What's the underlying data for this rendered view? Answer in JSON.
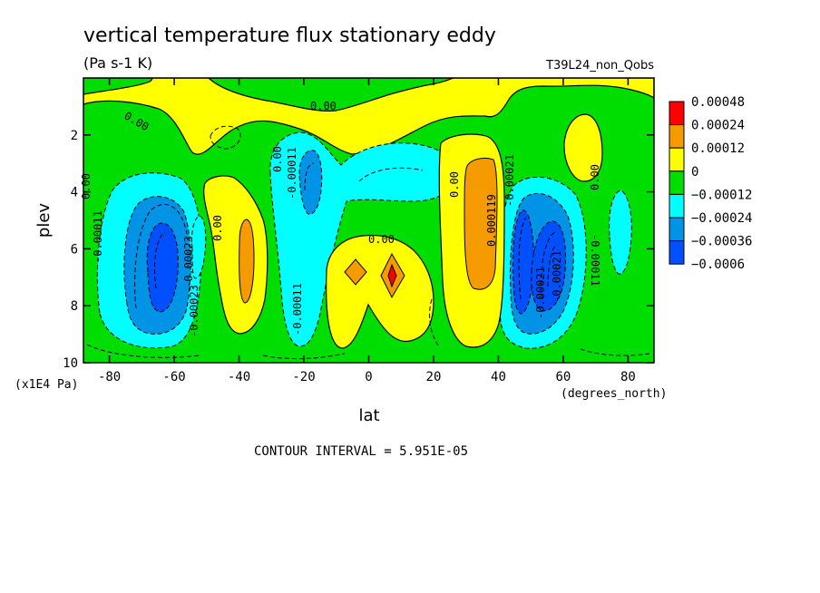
{
  "chart_data": {
    "type": "heatmap",
    "title": "vertical temperature flux stationary eddy",
    "units": "(Pa s-1 K)",
    "run": "T39L24_non_Qobs",
    "xlabel": "lat",
    "xunits": "(degrees_north)",
    "ylabel": "plev",
    "yunits": "(x1E4 Pa)",
    "xlim": [
      -88,
      88
    ],
    "ylim": [
      0,
      10
    ],
    "y_inverted": true,
    "x_ticks": [
      -80,
      -60,
      -40,
      -20,
      0,
      20,
      40,
      60,
      80
    ],
    "y_ticks": [
      2,
      4,
      6,
      8,
      10
    ],
    "contour_interval": "CONTOUR INTERVAL = 5.951E-05",
    "legend": {
      "labels": [
        "0.00048",
        "0.00024",
        "0.00012",
        "0",
        "−0.00012",
        "−0.00024",
        "−0.00036",
        "−0.0006"
      ],
      "colors": [
        "#ff0000",
        "#f59b00",
        "#ffff00",
        "#00dd00",
        "#00ffff",
        "#0093e6",
        "#0050ff"
      ]
    },
    "features": [
      {
        "lat": -65,
        "plev": 6.3,
        "value": -0.00045,
        "fill": "#0050ff"
      },
      {
        "lat": 52,
        "plev": 6.3,
        "value": -0.00045,
        "fill": "#0050ff"
      },
      {
        "lat": 7,
        "plev": 7.0,
        "value": 0.00036,
        "fill": "#ff0000"
      },
      {
        "lat": 36,
        "plev": 5.0,
        "value": 0.00018,
        "fill": "#f59b00"
      },
      {
        "lat": -37,
        "plev": 6.5,
        "value": 0.00018,
        "fill": "#f59b00"
      },
      {
        "lat": -5,
        "plev": 7.0,
        "value": 0.00018,
        "fill": "#f59b00"
      }
    ],
    "contour_labels": [
      "0.00",
      "0.00",
      "0.00",
      "0.00",
      "0.00",
      "0.00",
      "0.00",
      "0.00",
      "-0.00011",
      "-0.00011",
      "-0.00011",
      "-0.00011",
      "-0.00023",
      "-0.00023",
      "0.000119",
      "-0.00021",
      "-0.00021",
      "-0.00021"
    ]
  }
}
